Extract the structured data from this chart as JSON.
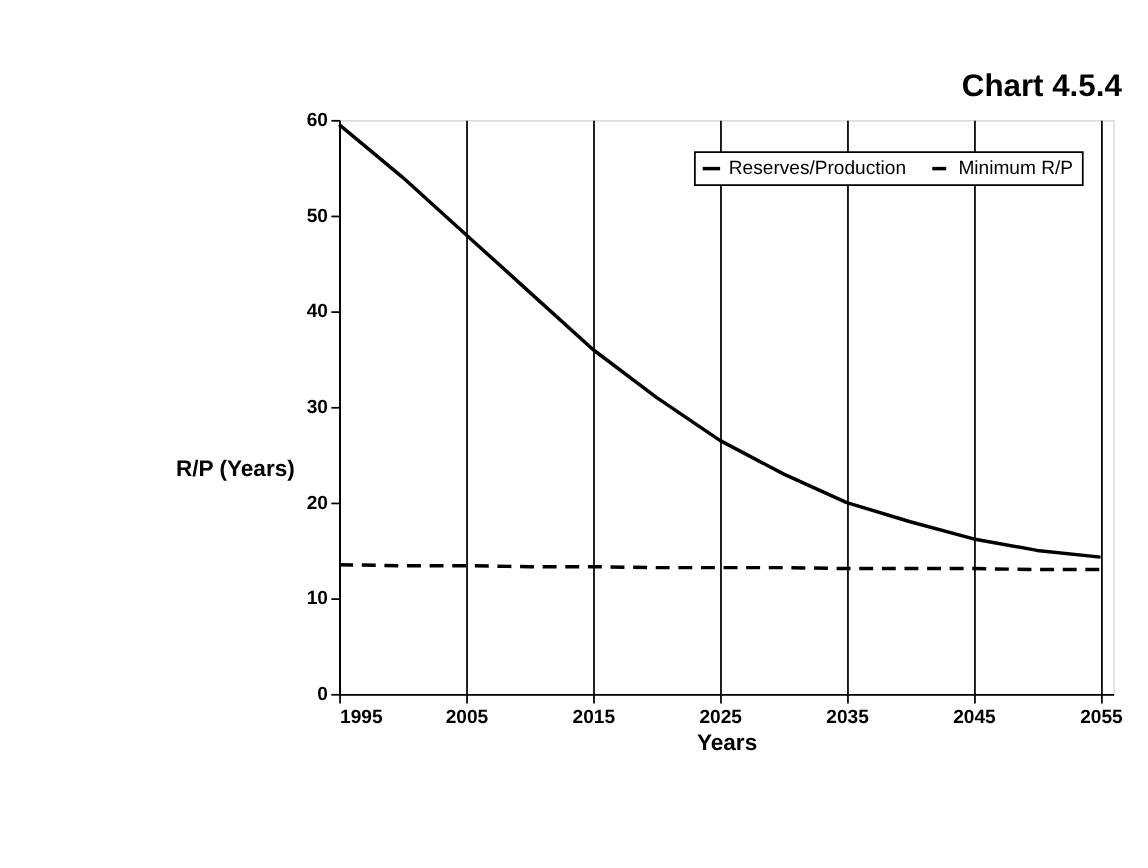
{
  "chart_data": {
    "type": "line",
    "title": "Chart 4.5.4",
    "xlabel": "Years",
    "ylabel": "R/P (Years)",
    "x": [
      1995,
      2000,
      2005,
      2010,
      2015,
      2020,
      2025,
      2030,
      2035,
      2040,
      2045,
      2050,
      2055
    ],
    "series": [
      {
        "name": "Reserves/Production",
        "color": "#000000",
        "line_style": "solid",
        "values": [
          59.5,
          54,
          48,
          42,
          36,
          31,
          26.5,
          23,
          20,
          18,
          16.2,
          15,
          14.3
        ]
      },
      {
        "name": "Minimum R/P",
        "color": "#000000",
        "line_style": "dashed",
        "values": [
          13.5,
          13.4,
          13.4,
          13.3,
          13.3,
          13.2,
          13.2,
          13.2,
          13.1,
          13.1,
          13.1,
          13,
          13
        ]
      }
    ],
    "xlim": [
      1995,
      2056
    ],
    "xticks": [
      1995,
      2005,
      2015,
      2025,
      2035,
      2045,
      2055
    ],
    "ylim": [
      0,
      60
    ],
    "yticks": [
      0,
      10,
      20,
      30,
      40,
      50,
      60
    ],
    "grid": "x",
    "legend": "top right",
    "marker": "none"
  }
}
